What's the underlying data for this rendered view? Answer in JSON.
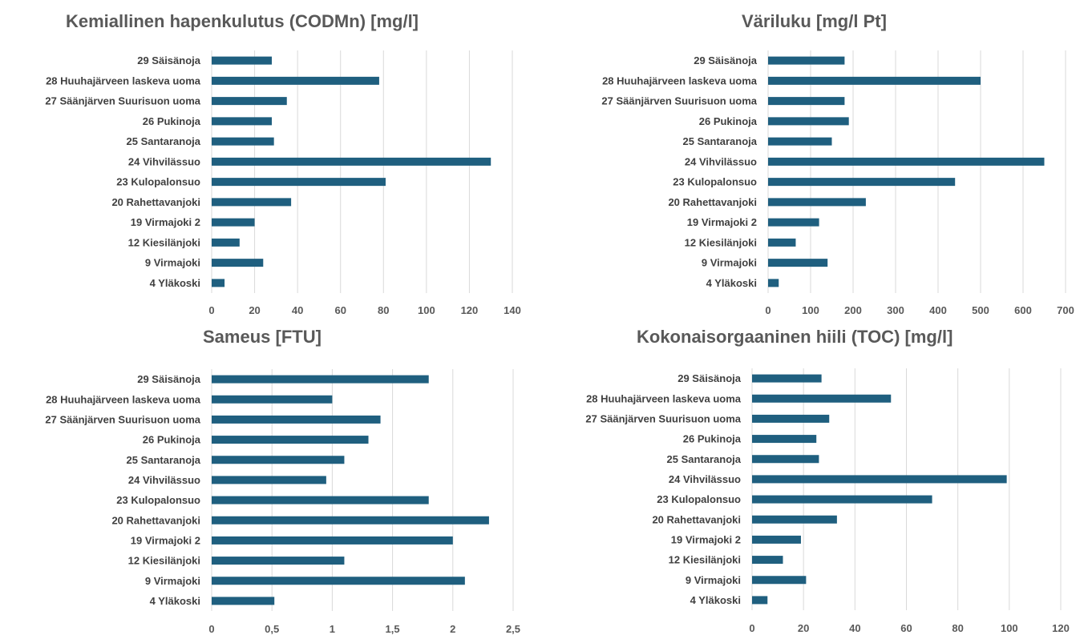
{
  "chart_data": [
    {
      "type": "bar",
      "orientation": "horizontal",
      "title": "Kemiallinen hapenkulutus (CODMn) [mg/l]",
      "categories": [
        "29 Säisänoja",
        "28 Huuhajärveen laskeva uoma",
        "27 Säänjärven Suurisuon uoma",
        "26 Pukinoja",
        "25 Santaranoja",
        "24 Vihvilässuo",
        "23 Kulopalonsuo",
        "20 Rahettavanjoki",
        "19 Virmajoki 2",
        "12 Kiesilänjoki",
        "9 Virmajoki",
        "4 Yläkoski"
      ],
      "values": [
        28,
        78,
        35,
        28,
        29,
        130,
        81,
        37,
        20,
        13,
        24,
        6
      ],
      "xlim": [
        0,
        140
      ],
      "ticks": [
        0,
        20,
        40,
        60,
        80,
        100,
        120,
        140
      ],
      "tick_labels": [
        "0",
        "20",
        "40",
        "60",
        "80",
        "100",
        "120",
        "140"
      ],
      "grid": true,
      "color": "#1F5F7F"
    },
    {
      "type": "bar",
      "orientation": "horizontal",
      "title": "Väriluku [mg/l Pt]",
      "categories": [
        "29 Säisänoja",
        "28 Huuhajärveen laskeva uoma",
        "27 Säänjärven Suurisuon uoma",
        "26 Pukinoja",
        "25 Santaranoja",
        "24 Vihvilässuo",
        "23 Kulopalonsuo",
        "20 Rahettavanjoki",
        "19 Virmajoki 2",
        "12 Kiesilänjoki",
        "9 Virmajoki",
        "4 Yläkoski"
      ],
      "values": [
        180,
        500,
        180,
        190,
        150,
        650,
        440,
        230,
        120,
        65,
        140,
        25
      ],
      "xlim": [
        0,
        700
      ],
      "ticks": [
        0,
        100,
        200,
        300,
        400,
        500,
        600,
        700
      ],
      "tick_labels": [
        "0",
        "100",
        "200",
        "300",
        "400",
        "500",
        "600",
        "700"
      ],
      "grid": true,
      "color": "#1F5F7F"
    },
    {
      "type": "bar",
      "orientation": "horizontal",
      "title": "Sameus [FTU]",
      "categories": [
        "29 Säisänoja",
        "28 Huuhajärveen laskeva uoma",
        "27 Säänjärven Suurisuon uoma",
        "26 Pukinoja",
        "25 Santaranoja",
        "24 Vihvilässuo",
        "23 Kulopalonsuo",
        "20 Rahettavanjoki",
        "19 Virmajoki 2",
        "12 Kiesilänjoki",
        "9 Virmajoki",
        "4 Yläkoski"
      ],
      "values": [
        1.8,
        1.0,
        1.4,
        1.3,
        1.1,
        0.95,
        1.8,
        2.3,
        2.0,
        1.1,
        2.1,
        0.52
      ],
      "xlim": [
        0,
        2.5
      ],
      "ticks": [
        0,
        0.5,
        1,
        1.5,
        2,
        2.5
      ],
      "tick_labels": [
        "0",
        "0,5",
        "1",
        "1,5",
        "2",
        "2,5"
      ],
      "grid": true,
      "color": "#1F5F7F"
    },
    {
      "type": "bar",
      "orientation": "horizontal",
      "title": "Kokonaisorgaaninen hiili (TOC) [mg/l]",
      "categories": [
        "29 Säisänoja",
        "28 Huuhajärveen laskeva uoma",
        "27 Säänjärven Suurisuon uoma",
        "26 Pukinoja",
        "25 Santaranoja",
        "24 Vihvilässuo",
        "23 Kulopalonsuo",
        "20 Rahettavanjoki",
        "19 Virmajoki 2",
        "12 Kiesilänjoki",
        "9 Virmajoki",
        "4 Yläkoski"
      ],
      "values": [
        27,
        54,
        30,
        25,
        26,
        99,
        70,
        33,
        19,
        12,
        21,
        6
      ],
      "xlim": [
        0,
        120
      ],
      "ticks": [
        0,
        20,
        40,
        60,
        80,
        100,
        120
      ],
      "tick_labels": [
        "0",
        "20",
        "40",
        "60",
        "80",
        "100",
        "120"
      ],
      "grid": true,
      "color": "#1F5F7F"
    }
  ]
}
